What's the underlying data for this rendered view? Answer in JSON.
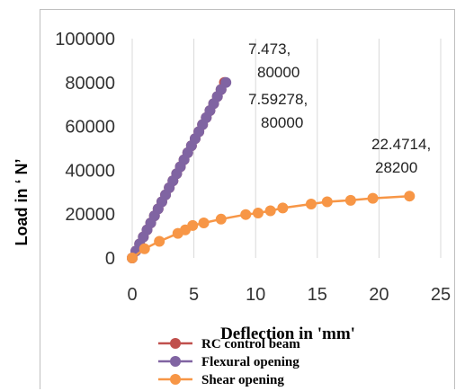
{
  "chart_data": {
    "type": "line",
    "title": "",
    "xlabel": "Deflection in 'mm'",
    "ylabel": "Load in ‘ N’",
    "xlim": [
      0,
      25
    ],
    "ylim": [
      0,
      100000
    ],
    "x_ticks": [
      "0",
      "5",
      "10",
      "15",
      "20",
      "25"
    ],
    "y_ticks": [
      "0",
      "20000",
      "40000",
      "60000",
      "80000",
      "100000"
    ],
    "grid": "vertical",
    "legend_position": "bottom-left",
    "series": [
      {
        "name": "RC control beam",
        "color": "#c0504d",
        "x": [
          0,
          0.3,
          0.6,
          0.9,
          1.2,
          1.5,
          1.8,
          2.1,
          2.4,
          2.7,
          3.0,
          3.3,
          3.6,
          3.9,
          4.2,
          4.5,
          4.8,
          5.1,
          5.4,
          5.7,
          6.0,
          6.3,
          6.6,
          6.9,
          7.2,
          7.473
        ],
        "y": [
          0,
          3200,
          6400,
          9600,
          12800,
          16000,
          19200,
          22400,
          25600,
          28800,
          32000,
          35200,
          38400,
          41600,
          44800,
          48000,
          51200,
          54400,
          57600,
          60800,
          64000,
          67200,
          70400,
          73600,
          76800,
          80000
        ]
      },
      {
        "name": "Flexural opening",
        "color": "#8064a2",
        "x": [
          0,
          0.3,
          0.6,
          0.9,
          1.2,
          1.5,
          1.8,
          2.1,
          2.4,
          2.7,
          3.0,
          3.3,
          3.6,
          3.9,
          4.2,
          4.5,
          4.8,
          5.1,
          5.4,
          5.7,
          6.0,
          6.3,
          6.6,
          6.9,
          7.2,
          7.59278
        ],
        "y": [
          0,
          3200,
          6400,
          9600,
          12800,
          16000,
          19200,
          22400,
          25600,
          28800,
          32000,
          35200,
          38400,
          41600,
          44800,
          48000,
          51200,
          54400,
          57600,
          60800,
          64000,
          67200,
          70400,
          73600,
          76800,
          80000
        ]
      },
      {
        "name": "Shear opening",
        "color": "#f79646",
        "x": [
          0,
          1,
          2.2,
          3.7,
          4.3,
          4.9,
          5.8,
          7.2,
          9.2,
          10.2,
          11.2,
          12.2,
          14.5,
          15.8,
          17.7,
          19.5,
          22.4714
        ],
        "y": [
          0,
          4200,
          7600,
          11200,
          12800,
          14800,
          16000,
          17700,
          19800,
          20500,
          21500,
          22800,
          24600,
          25600,
          26300,
          27200,
          28200
        ]
      }
    ],
    "annotations": [
      {
        "lines": [
          "7.473,",
          "80000"
        ]
      },
      {
        "lines": [
          "7.59278,",
          "80000"
        ]
      },
      {
        "lines": [
          "22.4714,",
          "28200"
        ]
      }
    ]
  }
}
